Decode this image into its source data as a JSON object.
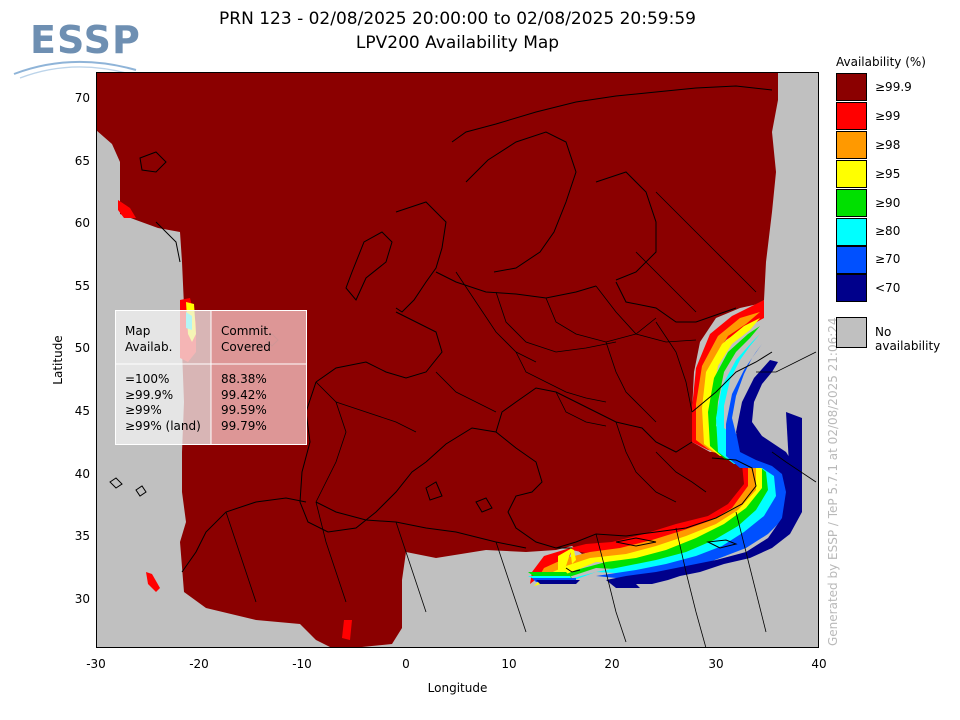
{
  "logo": {
    "text": "ESSP"
  },
  "title": {
    "line1": "PRN 123 - 02/08/2025 20:00:00 to 02/08/2025 20:59:59",
    "line2": "LPV200 Availability Map"
  },
  "axes": {
    "xlabel": "Longitude",
    "ylabel": "Latitude",
    "xticks": [
      "-30",
      "-20",
      "-10",
      "0",
      "10",
      "20",
      "30",
      "40"
    ],
    "yticks": [
      "70",
      "65",
      "60",
      "55",
      "50",
      "45",
      "40",
      "35",
      "30"
    ],
    "xlim": [
      -30,
      40
    ],
    "ylim": [
      26,
      72
    ]
  },
  "stats_table": {
    "col1_header_line1": "Map",
    "col1_header_line2": "Availab.",
    "col2_header_line1": "Commit.",
    "col2_header_line2": "Covered",
    "rows": [
      {
        "label": "=100%",
        "value": "88.38%"
      },
      {
        "label": "≥99.9%",
        "value": "99.42%"
      },
      {
        "label": "≥99%",
        "value": "99.59%"
      },
      {
        "label": "≥99% (land)",
        "value": "99.79%"
      }
    ]
  },
  "legend": {
    "title": "Availability (%)",
    "items": [
      {
        "label": "≥99.9",
        "color": "#8b0000"
      },
      {
        "label": "≥99",
        "color": "#ff0000"
      },
      {
        "label": "≥98",
        "color": "#ff9900"
      },
      {
        "label": "≥95",
        "color": "#ffff00"
      },
      {
        "label": "≥90",
        "color": "#00e000"
      },
      {
        "label": "≥80",
        "color": "#00ffff"
      },
      {
        "label": "≥70",
        "color": "#0050ff"
      },
      {
        "label": "<70",
        "color": "#00008b"
      }
    ],
    "no_availability": {
      "label": "No availability",
      "color": "#c0c0c0"
    }
  },
  "credit": "Generated by ESSP / TeP 5.7.1 at 02/08/2025 21:06:24",
  "colors": {
    "background_no_avail": "#c0c0c0",
    "high_availability": "#8b0000",
    "borders": "#000000"
  }
}
